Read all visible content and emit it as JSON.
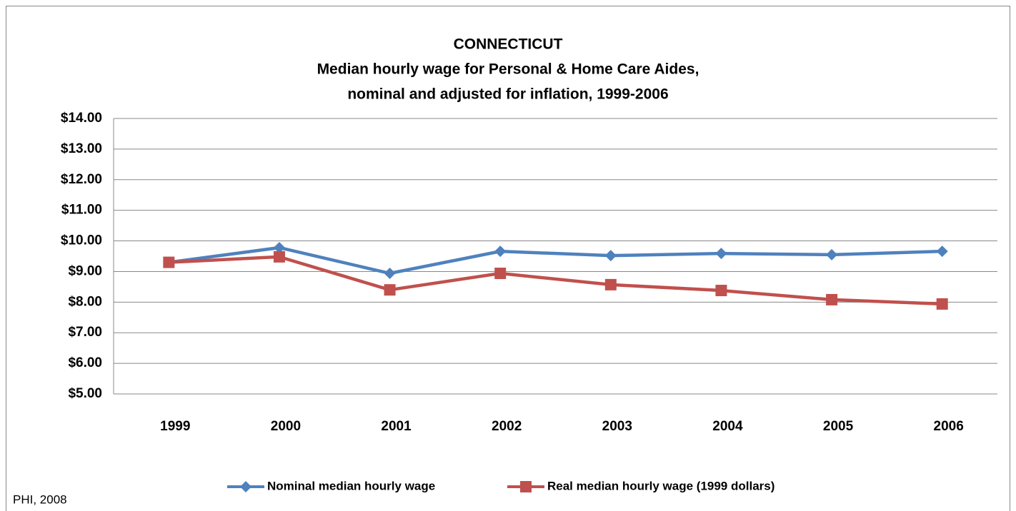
{
  "chart_data": {
    "type": "line",
    "title": [
      "CONNECTICUT",
      "Median hourly wage for Personal & Home Care Aides,",
      "nominal and adjusted for inflation, 1999-2006"
    ],
    "categories": [
      "1999",
      "2000",
      "2001",
      "2002",
      "2003",
      "2004",
      "2005",
      "2006"
    ],
    "series": [
      {
        "name": "Nominal median hourly wage",
        "color": "#4f81bd",
        "marker": "diamond",
        "values": [
          9.3,
          9.78,
          8.94,
          9.66,
          9.52,
          9.59,
          9.55,
          9.66
        ]
      },
      {
        "name": "Real median hourly wage (1999 dollars)",
        "color": "#c0504d",
        "marker": "square",
        "values": [
          9.3,
          9.48,
          8.4,
          8.94,
          8.57,
          8.38,
          8.08,
          7.94
        ]
      }
    ],
    "ylim": [
      5,
      14
    ],
    "yticks": [
      {
        "value": 5,
        "label": "$5.00"
      },
      {
        "value": 6,
        "label": "$6.00"
      },
      {
        "value": 7,
        "label": "$7.00"
      },
      {
        "value": 8,
        "label": "$8.00"
      },
      {
        "value": 9,
        "label": "$9.00"
      },
      {
        "value": 10,
        "label": "$10.00"
      },
      {
        "value": 11,
        "label": "$11.00"
      },
      {
        "value": 12,
        "label": "$12.00"
      },
      {
        "value": 13,
        "label": "$13.00"
      },
      {
        "value": 14,
        "label": "$14.00"
      }
    ],
    "grid": true,
    "legend": "bottom",
    "source": "PHI, 2008"
  }
}
